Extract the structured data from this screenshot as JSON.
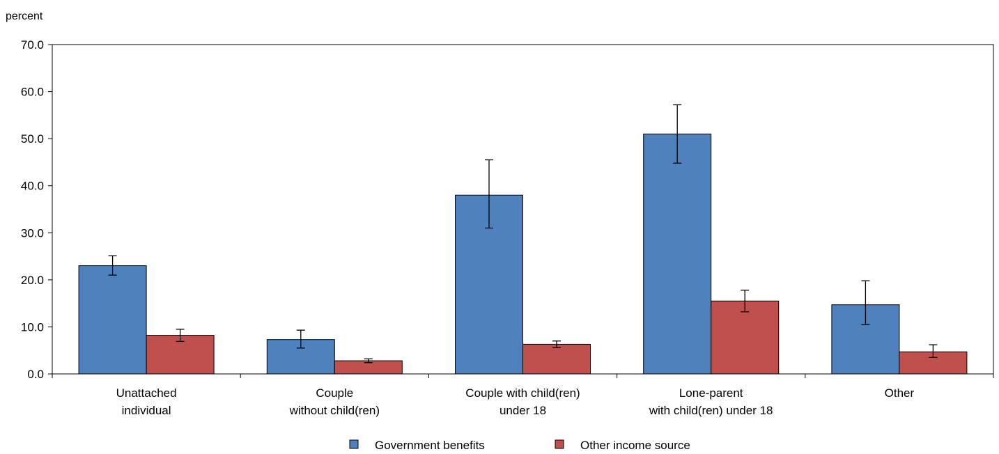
{
  "chart_data": {
    "type": "bar",
    "ylabel": "percent",
    "ylim": [
      0,
      70
    ],
    "yticks": [
      "0.0",
      "10.0",
      "20.0",
      "30.0",
      "40.0",
      "50.0",
      "60.0",
      "70.0"
    ],
    "categories": [
      [
        "Unattached",
        "individual"
      ],
      [
        "Couple",
        "without child(ren)"
      ],
      [
        "Couple with child(ren)",
        "under 18"
      ],
      [
        "Lone-parent",
        "with child(ren) under 18"
      ],
      [
        "Other"
      ]
    ],
    "series": [
      {
        "name": "Government benefits",
        "color": "#4f81bd",
        "values": [
          23.0,
          7.3,
          38.0,
          51.0,
          14.7
        ],
        "error_low": [
          21.0,
          5.5,
          31.0,
          44.8,
          10.5
        ],
        "error_high": [
          25.1,
          9.3,
          45.5,
          57.2,
          19.8
        ]
      },
      {
        "name": "Other income source",
        "color": "#c0504d",
        "values": [
          8.2,
          2.8,
          6.3,
          15.5,
          4.7
        ],
        "error_low": [
          6.9,
          2.4,
          5.6,
          13.2,
          3.5
        ],
        "error_high": [
          9.5,
          3.2,
          7.0,
          17.8,
          6.2
        ]
      }
    ],
    "grid": false,
    "legend_position": "bottom"
  }
}
